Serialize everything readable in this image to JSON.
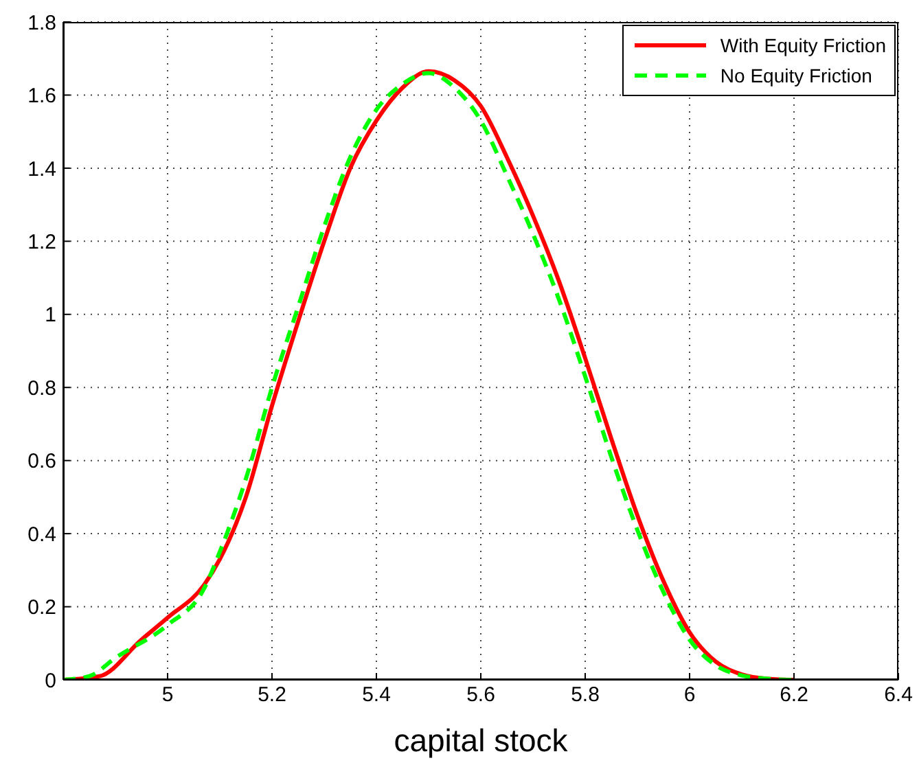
{
  "chart_data": {
    "type": "line",
    "xlabel": "capital stock",
    "xlim": [
      4.8,
      6.4
    ],
    "xticks": [
      5,
      5.2,
      5.4,
      5.6,
      5.8,
      6,
      6.2,
      6.4
    ],
    "ylim": [
      0,
      1.8
    ],
    "yticks": [
      0,
      0.2,
      0.4,
      0.6,
      0.8,
      1,
      1.2,
      1.4,
      1.6,
      1.8
    ],
    "grid": true,
    "legend": "top right",
    "marker": "none",
    "series": [
      {
        "name": "With Equity Friction",
        "color": "#ff0000",
        "line_style": "solid",
        "x": [
          4.8,
          4.87,
          4.95,
          5,
          5.07,
          5.1,
          5.15,
          5.2,
          5.25,
          5.3,
          5.35,
          5.4,
          5.45,
          5.5,
          5.55,
          5.6,
          5.65,
          5.7,
          5.75,
          5.8,
          5.85,
          5.9,
          5.95,
          6,
          6.05,
          6.1,
          6.15,
          6.2
        ],
        "values": [
          0,
          0.01,
          0.11,
          0.17,
          0.26,
          0.33,
          0.5,
          0.75,
          0.98,
          1.2,
          1.4,
          1.53,
          1.62,
          1.665,
          1.64,
          1.57,
          1.43,
          1.27,
          1.09,
          0.88,
          0.66,
          0.45,
          0.27,
          0.13,
          0.05,
          0.015,
          0.003,
          0
        ]
      },
      {
        "name": "No Equity Friction",
        "color": "#00ff00",
        "line_style": "dashed",
        "x": [
          4.8,
          4.85,
          4.9,
          5,
          5.07,
          5.1,
          5.15,
          5.2,
          5.25,
          5.3,
          5.35,
          5.4,
          5.45,
          5.5,
          5.55,
          5.6,
          5.65,
          5.7,
          5.75,
          5.8,
          5.85,
          5.9,
          5.95,
          6,
          6.05,
          6.1,
          6.15,
          6.2
        ],
        "values": [
          0,
          0.01,
          0.06,
          0.15,
          0.25,
          0.35,
          0.55,
          0.8,
          1.02,
          1.24,
          1.43,
          1.56,
          1.63,
          1.66,
          1.62,
          1.53,
          1.38,
          1.22,
          1.04,
          0.83,
          0.61,
          0.41,
          0.24,
          0.11,
          0.04,
          0.012,
          0.003,
          0
        ]
      }
    ]
  }
}
